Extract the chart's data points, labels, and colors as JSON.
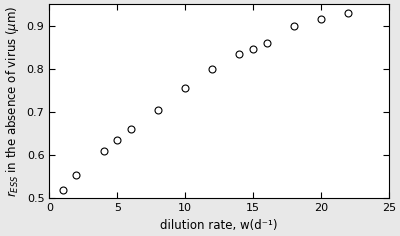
{
  "x": [
    1,
    2,
    4,
    5,
    6,
    8,
    10,
    12,
    14,
    15,
    16,
    18,
    20,
    22
  ],
  "y": [
    0.52,
    0.555,
    0.61,
    0.635,
    0.66,
    0.705,
    0.755,
    0.8,
    0.835,
    0.845,
    0.86,
    0.9,
    0.915,
    0.93
  ],
  "xlabel": "dilution rate, w(d⁻¹)",
  "xlim": [
    0,
    25
  ],
  "ylim": [
    0.5,
    0.95
  ],
  "xticks": [
    0,
    5,
    10,
    15,
    20,
    25
  ],
  "yticks": [
    0.5,
    0.6,
    0.7,
    0.8,
    0.9
  ],
  "marker_size": 5,
  "marker_linewidth": 0.8,
  "fig_bg_color": "#e8e8e8",
  "axes_bg_color": "#ffffff"
}
